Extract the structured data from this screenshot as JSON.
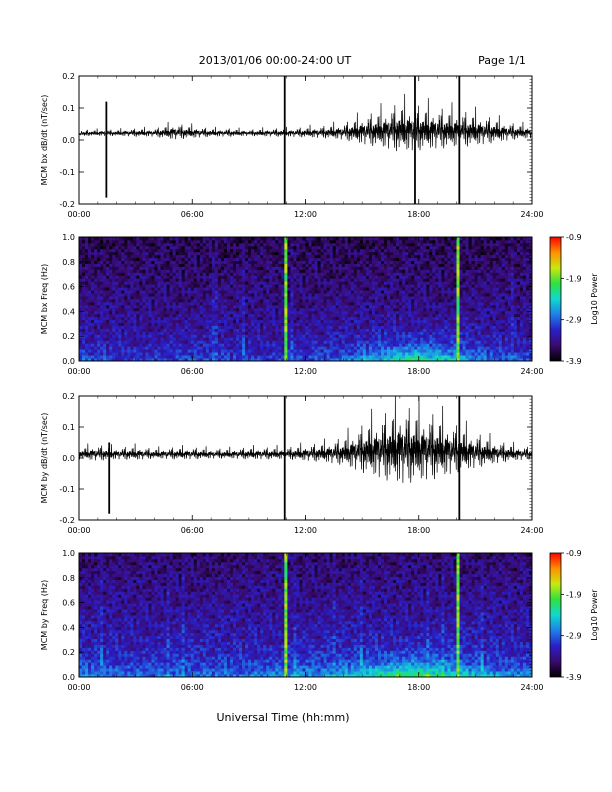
{
  "header": {
    "title": "2013/01/06  00:00-24:00 UT",
    "page": "Page 1/1"
  },
  "footer": {
    "xlabel": "Universal Time (hh:mm)"
  },
  "colorbar": {
    "label": "Log10 Power",
    "ticks": [
      "-0.9",
      "-1.9",
      "-2.9",
      "-3.9"
    ],
    "range": [
      -3.9,
      -0.9
    ],
    "colors": [
      "#000000",
      "#3a0a6e",
      "#2a1fc8",
      "#1f7fe6",
      "#10d8d0",
      "#30e040",
      "#c8e810",
      "#ff9000",
      "#ff0000"
    ]
  },
  "chart_data": [
    {
      "type": "line",
      "ylabel": "MCM bx dB/dt (nT/sec)",
      "xlim": [
        0,
        24
      ],
      "ylim": [
        -0.2,
        0.2
      ],
      "xticks": [
        "00:00",
        "06:00",
        "12:00",
        "18:00",
        "24:00"
      ],
      "yticks": [
        "0.2",
        "0.1",
        "0.0",
        "-0.1",
        "-0.2"
      ],
      "baseline": 0.02,
      "envelope": {
        "hours": [
          0,
          2,
          3,
          4,
          5,
          6,
          7,
          8,
          9,
          10,
          11,
          12,
          13,
          14,
          15,
          16,
          17,
          18,
          19,
          20,
          21,
          22,
          23,
          24
        ],
        "amplitude": [
          0.015,
          0.015,
          0.02,
          0.02,
          0.04,
          0.03,
          0.02,
          0.02,
          0.015,
          0.02,
          0.02,
          0.025,
          0.03,
          0.04,
          0.07,
          0.09,
          0.12,
          0.11,
          0.1,
          0.09,
          0.08,
          0.06,
          0.04,
          0.03
        ]
      },
      "spikes": [
        {
          "hour": 1.45,
          "min": -0.18,
          "max": 0.12
        },
        {
          "hour": 10.9,
          "min": -0.2,
          "max": 0.2
        },
        {
          "hour": 17.8,
          "min": -0.2,
          "max": 0.2
        },
        {
          "hour": 20.15,
          "min": -0.2,
          "max": 0.2
        }
      ]
    },
    {
      "type": "heatmap",
      "ylabel": "MCM bx Freq (Hz)",
      "xlim": [
        0,
        24
      ],
      "ylim": [
        0.0,
        1.0
      ],
      "xticks": [
        "00:00",
        "06:00",
        "12:00",
        "18:00",
        "24:00"
      ],
      "yticks": [
        "1.0",
        "0.8",
        "0.6",
        "0.4",
        "0.2",
        "0.0"
      ],
      "z_range": [
        -3.9,
        -0.9
      ],
      "background_log_power": -3.3,
      "low_freq_activity": {
        "hours": [
          0,
          4,
          6,
          10,
          12,
          14,
          15,
          16,
          17,
          18,
          19,
          20,
          21,
          22,
          24
        ],
        "level": [
          0.25,
          0.15,
          0.2,
          0.15,
          0.2,
          0.3,
          0.5,
          0.65,
          0.8,
          0.85,
          0.7,
          0.55,
          0.45,
          0.3,
          0.25
        ]
      },
      "bright_columns": [
        10.9,
        20.15
      ]
    },
    {
      "type": "line",
      "ylabel": "MCM by dB/dt (nT/sec)",
      "xlim": [
        0,
        24
      ],
      "ylim": [
        -0.2,
        0.2
      ],
      "xticks": [
        "00:00",
        "06:00",
        "12:00",
        "18:00",
        "24:00"
      ],
      "yticks": [
        "0.2",
        "0.1",
        "0.0",
        "-0.1",
        "-0.2"
      ],
      "baseline": 0.01,
      "envelope": {
        "hours": [
          0,
          1,
          2,
          3,
          4,
          5,
          6,
          7,
          8,
          9,
          10,
          11,
          12,
          13,
          14,
          15,
          16,
          17,
          18,
          19,
          20,
          21,
          22,
          23,
          24
        ],
        "amplitude": [
          0.03,
          0.04,
          0.03,
          0.035,
          0.025,
          0.03,
          0.03,
          0.025,
          0.025,
          0.03,
          0.03,
          0.03,
          0.04,
          0.05,
          0.07,
          0.12,
          0.16,
          0.2,
          0.18,
          0.16,
          0.12,
          0.09,
          0.06,
          0.04,
          0.03
        ]
      },
      "spikes": [
        {
          "hour": 1.6,
          "min": -0.18,
          "max": 0.05
        },
        {
          "hour": 10.9,
          "min": -0.2,
          "max": 0.2
        },
        {
          "hour": 20.15,
          "min": -0.2,
          "max": 0.2
        }
      ]
    },
    {
      "type": "heatmap",
      "ylabel": "MCM by Freq (Hz)",
      "xlim": [
        0,
        24
      ],
      "ylim": [
        0.0,
        1.0
      ],
      "xticks": [
        "00:00",
        "06:00",
        "12:00",
        "18:00",
        "24:00"
      ],
      "yticks": [
        "1.0",
        "0.8",
        "0.6",
        "0.4",
        "0.2",
        "0.0"
      ],
      "z_range": [
        -3.9,
        -0.9
      ],
      "background_log_power": -3.2,
      "low_freq_activity": {
        "hours": [
          0,
          3,
          6,
          9,
          11,
          13,
          14,
          15,
          16,
          17,
          18,
          19,
          20,
          21,
          22,
          24
        ],
        "level": [
          0.35,
          0.25,
          0.25,
          0.3,
          0.35,
          0.4,
          0.5,
          0.6,
          0.75,
          0.85,
          0.85,
          0.75,
          0.6,
          0.55,
          0.4,
          0.35
        ]
      },
      "bright_columns": [
        10.9,
        20.15
      ]
    }
  ]
}
